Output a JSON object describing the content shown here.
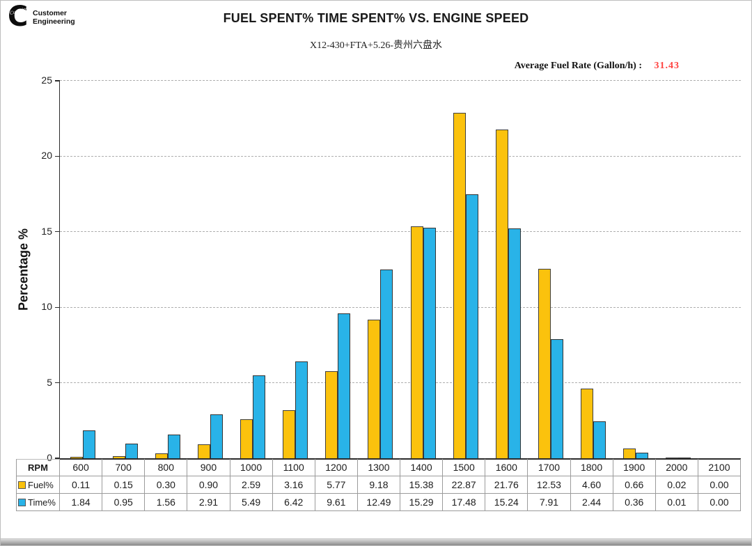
{
  "header": {
    "logo": {
      "line1": "Customer",
      "line2": "Engineering",
      "brand": "Cummins"
    },
    "title": "FUEL SPENT% TIME SPENT% VS. ENGINE SPEED",
    "subtitle": "X12-430+FTA+5.26-贵州六盘水",
    "avg_fuel_rate": {
      "label": "Average Fuel Rate (Gallon/h) :",
      "value": "31.43",
      "value_color": "#FF4340"
    }
  },
  "chart_data": {
    "type": "bar",
    "title": "FUEL SPENT% TIME SPENT% VS. ENGINE SPEED",
    "categories": [
      600,
      700,
      800,
      900,
      1000,
      1100,
      1200,
      1300,
      1400,
      1500,
      1600,
      1700,
      1800,
      1900,
      2000,
      2100
    ],
    "series": [
      {
        "name": "Fuel%",
        "color": "#FBC20D",
        "border_color": "#3F3F3F",
        "values": [
          0.11,
          0.15,
          0.3,
          0.9,
          2.59,
          3.16,
          5.77,
          9.18,
          15.38,
          22.87,
          21.76,
          12.53,
          4.6,
          0.66,
          0.02,
          0.0
        ]
      },
      {
        "name": "Time%",
        "color": "#29B3E8",
        "border_color": "#333333",
        "values": [
          1.84,
          0.95,
          1.56,
          2.91,
          5.49,
          6.42,
          9.61,
          12.49,
          15.29,
          17.48,
          15.24,
          7.91,
          2.44,
          0.36,
          0.01,
          0.0
        ]
      }
    ],
    "xlabel": "RPM",
    "ylabel": "Percentage %",
    "ylim": [
      0,
      25
    ],
    "yticks": [
      0,
      5,
      10,
      15,
      20,
      25
    ],
    "grid": "horizontal-dashed",
    "legend_position": "table-rows-left"
  },
  "table": {
    "corner_label": "RPM",
    "columns": [
      "600",
      "700",
      "800",
      "900",
      "1000",
      "1100",
      "1200",
      "1300",
      "1400",
      "1500",
      "1600",
      "1700",
      "1800",
      "1900",
      "2000",
      "2100"
    ],
    "rows": [
      {
        "label": "Fuel%",
        "swatch_color": "#FBC20D",
        "values": [
          "0.11",
          "0.15",
          "0.30",
          "0.90",
          "2.59",
          "3.16",
          "5.77",
          "9.18",
          "15.38",
          "22.87",
          "21.76",
          "12.53",
          "4.60",
          "0.66",
          "0.02",
          "0.00"
        ]
      },
      {
        "label": "Time%",
        "swatch_color": "#29B3E8",
        "values": [
          "1.84",
          "0.95",
          "1.56",
          "2.91",
          "5.49",
          "6.42",
          "9.61",
          "12.49",
          "15.29",
          "17.48",
          "15.24",
          "7.91",
          "2.44",
          "0.36",
          "0.01",
          "0.00"
        ]
      }
    ]
  }
}
